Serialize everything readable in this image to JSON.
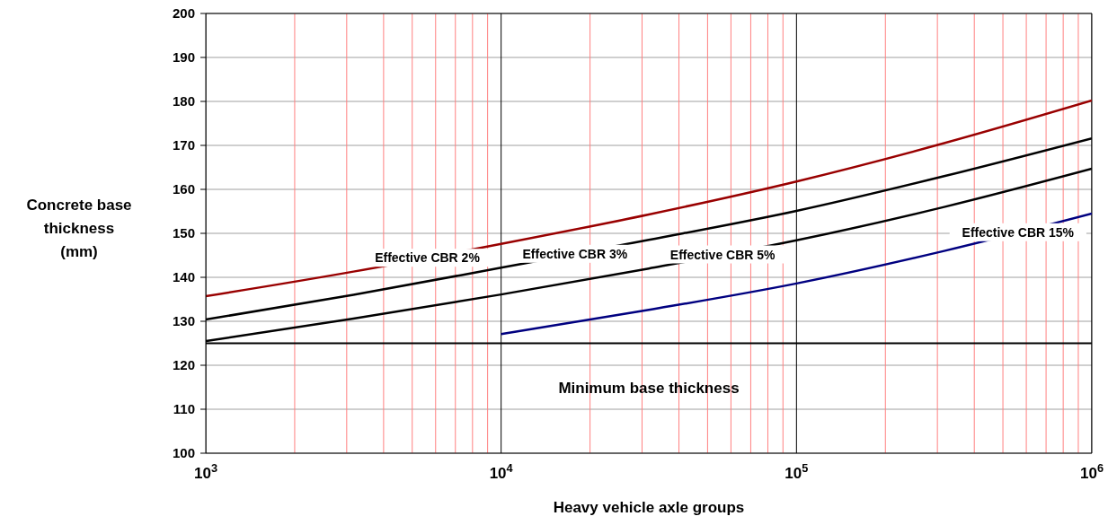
{
  "chart_data": {
    "type": "line",
    "xlabel": "Heavy vehicle axle groups",
    "ylabel": "Concrete base thickness (mm)",
    "log": "x",
    "xlim": [
      1000,
      1000000
    ],
    "xticks": [
      {
        "value": 1000,
        "label": "10$^{3}$"
      },
      {
        "value": 2000,
        "label": null
      },
      {
        "value": 3000,
        "label": null
      },
      {
        "value": 4000,
        "label": null
      },
      {
        "value": 5000,
        "label": null
      },
      {
        "value": 6000,
        "label": null
      },
      {
        "value": 7000,
        "label": null
      },
      {
        "value": 8000,
        "label": null
      },
      {
        "value": 9000,
        "label": null
      },
      {
        "value": 10000,
        "label": "10$^{4}$"
      },
      {
        "value": 20000,
        "label": null
      },
      {
        "value": 30000,
        "label": null
      },
      {
        "value": 40000,
        "label": null
      },
      {
        "value": 50000,
        "label": null
      },
      {
        "value": 60000,
        "label": null
      },
      {
        "value": 70000,
        "label": null
      },
      {
        "value": 80000,
        "label": null
      },
      {
        "value": 90000,
        "label": null
      },
      {
        "value": 100000,
        "label": "10$^{5}$"
      },
      {
        "value": 200000,
        "label": null
      },
      {
        "value": 300000,
        "label": null
      },
      {
        "value": 400000,
        "label": null
      },
      {
        "value": 500000,
        "label": null
      },
      {
        "value": 600000,
        "label": null
      },
      {
        "value": 700000,
        "label": null
      },
      {
        "value": 800000,
        "label": null
      },
      {
        "value": 900000,
        "label": null
      },
      {
        "value": 1000000,
        "label": "10$^{6}$"
      }
    ],
    "ylim": [
      100,
      200
    ],
    "yticks": [
      100,
      110,
      120,
      130,
      140,
      150,
      160,
      170,
      180,
      190,
      200
    ],
    "grid": true,
    "marker": "none",
    "line_style": "solid",
    "x": [
      1000,
      3162,
      10000,
      31623,
      100000,
      316228,
      1000000
    ],
    "series": [
      {
        "name": "Effective CBR 2%",
        "color": "#990000",
        "values": [
          135.7,
          141.3,
          147.6,
          154.3,
          161.8,
          170.5,
          180.2
        ]
      },
      {
        "name": "Effective CBR 3%",
        "color": "#000000",
        "values": [
          130.4,
          136.0,
          142.2,
          148.5,
          155.1,
          163.0,
          171.6
        ]
      },
      {
        "name": "Effective CBR 5%",
        "color": "#000000",
        "values": [
          125.5,
          130.6,
          136.1,
          142.0,
          148.4,
          156.0,
          164.7
        ]
      },
      {
        "name": "Effective CBR 15%",
        "color": "#000080",
        "values": [
          null,
          null,
          127.1,
          132.6,
          138.6,
          146.0,
          154.5
        ]
      }
    ],
    "ref_lines": [
      {
        "axis": "y",
        "value": 125,
        "label": "Minimum base thickness",
        "color": "#000000"
      }
    ]
  }
}
